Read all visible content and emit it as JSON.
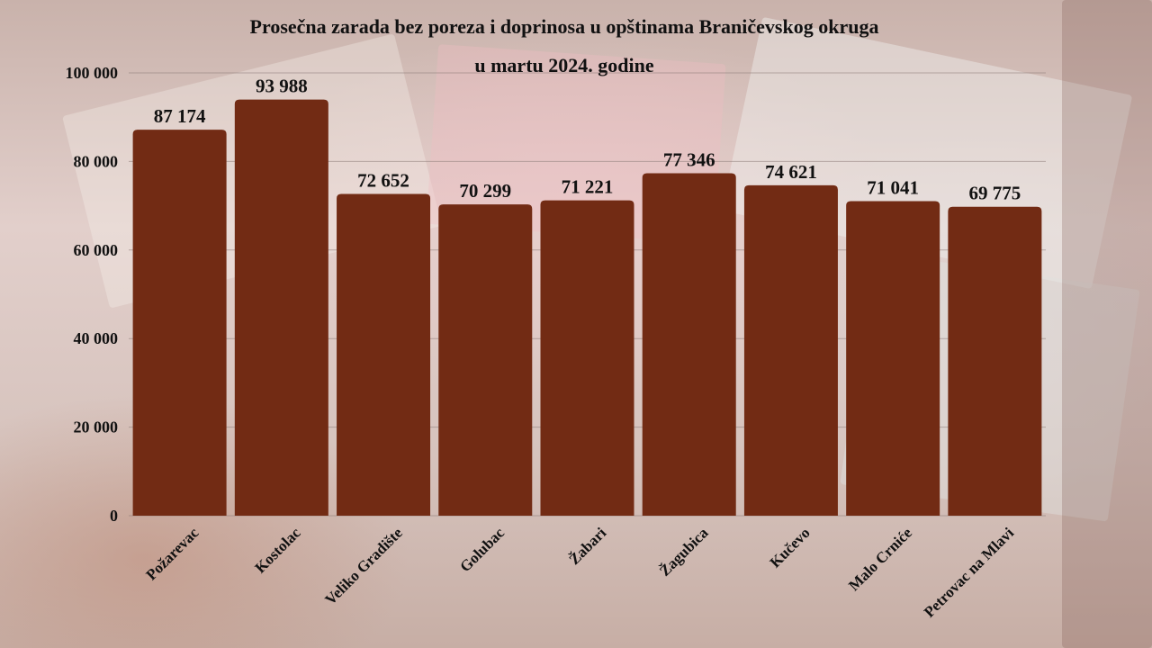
{
  "chart_data": {
    "type": "bar",
    "title_line1": "Prosečna zarada bez poreza i doprinosa u opštinama Braničevskog okruga",
    "title_line2": "u martu 2024. godine",
    "xlabel": "",
    "ylabel": "",
    "ylim": [
      0,
      100000
    ],
    "yticks": [
      0,
      20000,
      40000,
      60000,
      80000,
      100000
    ],
    "ytick_labels": [
      "0",
      "20 000",
      "40 000",
      "60 000",
      "80 000",
      "100 000"
    ],
    "categories": [
      "Požarevac",
      "Kostolac",
      "Veliko Gradište",
      "Golubac",
      "Žabari",
      "Žagubica",
      "Kučevo",
      "Malo Crniće",
      "Petrovac na Mlavi"
    ],
    "values": [
      87174,
      93988,
      72652,
      70299,
      71221,
      77346,
      74621,
      71041,
      69775
    ],
    "value_labels": [
      "87 174",
      "93 988",
      "72 652",
      "70 299",
      "71 221",
      "77 346",
      "74 621",
      "71 041",
      "69 775"
    ],
    "grid": true,
    "legend": "none",
    "bar_color": "#722b14"
  }
}
